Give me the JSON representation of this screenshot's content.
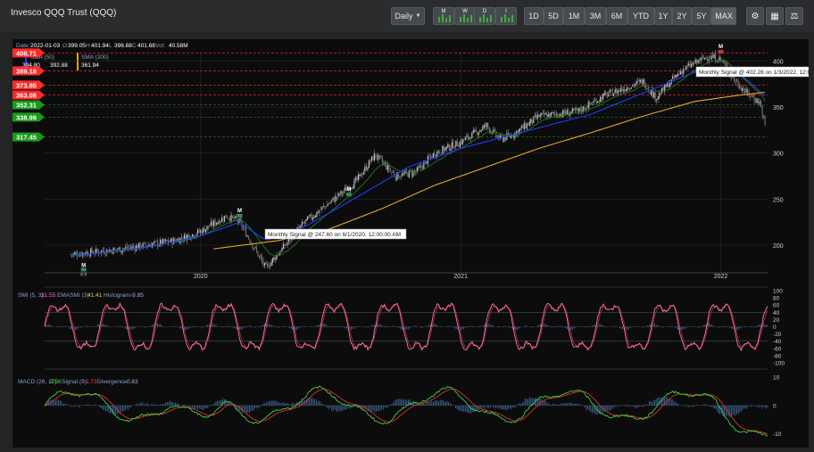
{
  "header": {
    "title": "Invesco QQQ Trust (QQQ)",
    "interval": "Daily",
    "mini_buttons": [
      "M",
      "W",
      "D",
      "I"
    ],
    "ranges": [
      "1D",
      "5D",
      "1M",
      "3M",
      "6M",
      "YTD",
      "1Y",
      "2Y",
      "5Y",
      "MAX"
    ],
    "active_range": "MAX",
    "tool_icons": [
      "gear-icon",
      "calculator-icon",
      "scale-icon"
    ]
  },
  "price_panel": {
    "info_date_label": "Date:",
    "info_date": "2022-01-03",
    "info_o_label": "O",
    "info_o": "399.05",
    "info_h_label": "H",
    "info_h": "401.94",
    "info_l_label": "L",
    "info_l": "396.88",
    "info_c_label": "C",
    "info_c": "401.68",
    "info_vol_label": "Vol:",
    "info_vol": "40.58M",
    "sma50_label": "SMA (50)",
    "sma50_value": "392.88",
    "sma50_value2": "394.80",
    "sma200_label": "SMA (200)",
    "sma200_value": "361.94",
    "tooltip_1": "Monthly Signal @ 402.28 on 1/3/2022, 12:0",
    "tooltip_2": "Monthly Signal @ 247.60 on 6/1/2020, 12:00:00 AM",
    "signal_marker": "M",
    "signal_count": "8 8",
    "colors": {
      "up": "#a0a0a0",
      "down": "#a0a0a0",
      "sma50": "#1d3dff",
      "sma200": "#e3a52c",
      "ema": "#1e7a1e",
      "res": "#ff2b2b",
      "sup": "#1a9a1a"
    }
  },
  "chart_data": [
    {
      "type": "line",
      "title": "",
      "x_ticks": [
        "2020",
        "2021",
        "2022"
      ],
      "y_ticks": [
        200,
        250,
        300,
        350,
        400
      ],
      "ylim": [
        170,
        410
      ],
      "levels": [
        {
          "value": 408.71,
          "label": "408.71",
          "kind": "resistance"
        },
        {
          "value": 389.18,
          "label": "389.18",
          "kind": "resistance"
        },
        {
          "value": 373.85,
          "label": "373.85",
          "kind": "resistance"
        },
        {
          "value": 363.08,
          "label": "363.08",
          "kind": "resistance"
        },
        {
          "value": 352.31,
          "label": "352.31",
          "kind": "support"
        },
        {
          "value": 338.99,
          "label": "338.99",
          "kind": "support"
        },
        {
          "value": 317.45,
          "label": "317.45",
          "kind": "support"
        }
      ],
      "series": [
        {
          "name": "Price",
          "x": [
            2019.5,
            2019.7,
            2019.9,
            2020.0,
            2020.1,
            2020.15,
            2020.2,
            2020.25,
            2020.4,
            2020.5,
            2020.6,
            2020.67,
            2020.75,
            2020.83,
            2020.9,
            2021.0,
            2021.1,
            2021.15,
            2021.2,
            2021.3,
            2021.45,
            2021.55,
            2021.7,
            2021.75,
            2021.85,
            2021.95,
            2022.0,
            2022.05,
            2022.1,
            2022.15,
            2022.17
          ],
          "values": [
            190,
            196,
            205,
            215,
            232,
            225,
            200,
            175,
            225,
            247,
            270,
            298,
            275,
            280,
            300,
            312,
            330,
            315,
            320,
            340,
            345,
            362,
            378,
            360,
            390,
            405,
            402,
            380,
            365,
            355,
            330
          ]
        },
        {
          "name": "SMA (50)",
          "x": [
            2019.5,
            2019.8,
            2020.0,
            2020.15,
            2020.25,
            2020.4,
            2020.6,
            2020.8,
            2021.0,
            2021.2,
            2021.5,
            2021.7,
            2021.9,
            2022.05,
            2022.17
          ],
          "values": [
            188,
            198,
            210,
            225,
            205,
            220,
            252,
            285,
            305,
            320,
            342,
            365,
            388,
            392,
            362
          ]
        },
        {
          "name": "SMA (200)",
          "x": [
            2020.05,
            2020.3,
            2020.5,
            2020.7,
            2020.9,
            2021.1,
            2021.3,
            2021.5,
            2021.7,
            2021.9,
            2022.05,
            2022.17
          ],
          "values": [
            196,
            205,
            218,
            240,
            265,
            285,
            305,
            322,
            340,
            356,
            362,
            366
          ]
        }
      ]
    },
    {
      "type": "line",
      "title": "",
      "label": "SMI (5, 3): 31.55 EMASMI (3): 41.41 Histogram: -9.85",
      "label_smi": "SMI (5, 3):",
      "smi": "31.55",
      "label_emasmi": "EMASMI (3):",
      "emasmi": "41.41",
      "label_hist": "Histogram:",
      "hist": "-9.85",
      "y_ticks": [
        100,
        80,
        60,
        40,
        20,
        0,
        -20,
        -40,
        -60,
        -80,
        -100
      ],
      "ylim": [
        -100,
        100
      ]
    },
    {
      "type": "line",
      "title": "",
      "label_macd": "MACD (26, 12):",
      "macd": "2.56",
      "label_signal": "Signal (9):",
      "signal": "1.73",
      "label_div": "Divergence:",
      "div": "0.83",
      "y_ticks": [
        10,
        0,
        -10
      ],
      "ylim": [
        -13,
        11
      ]
    }
  ]
}
